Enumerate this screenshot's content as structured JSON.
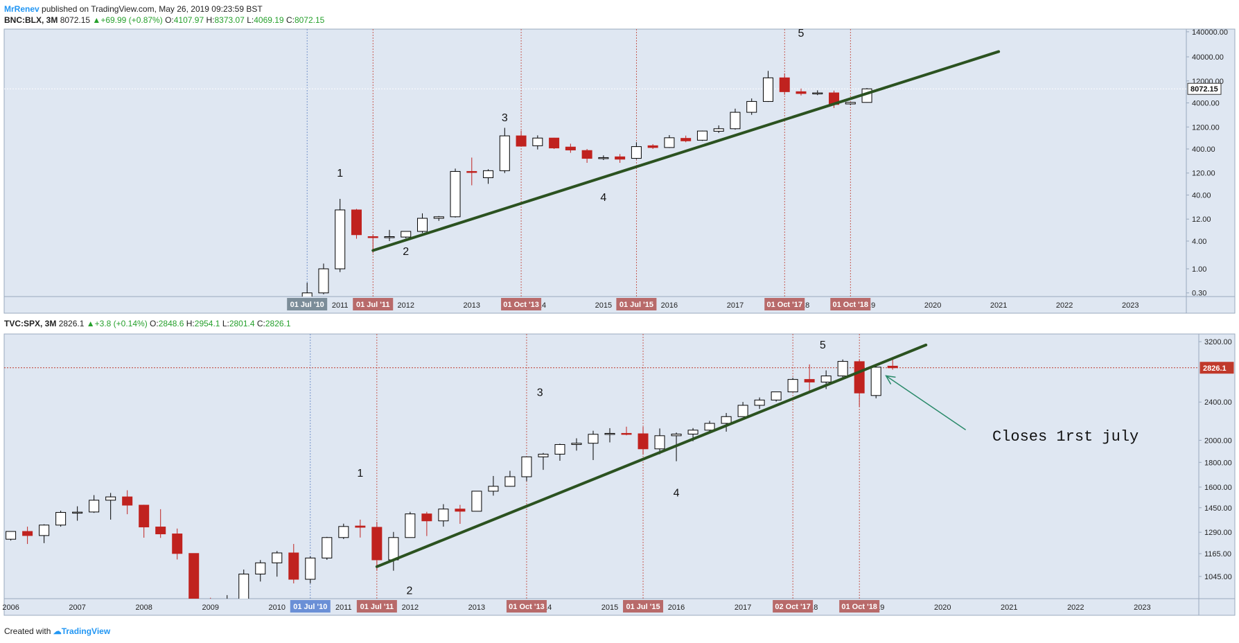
{
  "header": {
    "author": "MrRenev",
    "published": "published on TradingView.com, May 26, 2019 09:23:59 BST"
  },
  "footer": {
    "created_with": "Created with",
    "brand": "TradingView"
  },
  "colors": {
    "bg": "#dfe7f2",
    "up_fill": "#ffffff",
    "down_fill": "#c0221f",
    "trend": "#2b5220",
    "vline": "#c0392b",
    "vline_blue": "#5b7fbf",
    "arrow": "#2a8a6a"
  },
  "chart_data": [
    {
      "type": "candlestick",
      "symbol": "BNC:BLX, 3M",
      "legend": {
        "last": "8072.15",
        "change": "+69.99 (+0.87%)",
        "o_label": "O:",
        "o": "4107.97",
        "h_label": "H:",
        "h": "8373.07",
        "l_label": "L:",
        "l": "4069.19",
        "c_label": "C:",
        "c": "8072.15"
      },
      "yscale": "log",
      "ylim": [
        0.25,
        160000
      ],
      "xlim": [
        2005.9,
        2023.85
      ],
      "y_ticks": [
        "140000.00",
        "40000.00",
        "12000.00",
        "4000.00",
        "1200.00",
        "400.00",
        "120.00",
        "40.00",
        "12.00",
        "4.00",
        "1.00",
        "0.30"
      ],
      "y_tick_values": [
        140000,
        40000,
        12000,
        4000,
        1200,
        400,
        120,
        40,
        12,
        4,
        1,
        0.3
      ],
      "price_label": "8072.15",
      "price_value": 8072.15,
      "x_ticks": [
        "2011",
        "2012",
        "2013",
        "2014",
        "2015",
        "2016",
        "2017",
        "2018",
        "2019",
        "2020",
        "2021",
        "2022",
        "2023"
      ],
      "x_tick_values": [
        2011,
        2012,
        2013,
        2014,
        2015,
        2016,
        2017,
        2018,
        2019,
        2020,
        2021,
        2022,
        2023
      ],
      "date_markers": [
        {
          "text": "01 Jul '10",
          "t": 2010.5,
          "style": "gray"
        },
        {
          "text": "01 Jul '11",
          "t": 2011.5,
          "style": "red"
        },
        {
          "text": "01 Oct '13",
          "t": 2013.75,
          "style": "red"
        },
        {
          "text": "01 Jul '15",
          "t": 2015.5,
          "style": "red"
        },
        {
          "text": "01 Oct '17",
          "t": 2017.75,
          "style": "red"
        },
        {
          "text": "01 Oct '18",
          "t": 2018.75,
          "style": "red"
        }
      ],
      "wave_labels": [
        {
          "text": "1",
          "t": 2011.0,
          "y": 100
        },
        {
          "text": "2",
          "t": 2012.0,
          "y": 2
        },
        {
          "text": "3",
          "t": 2013.5,
          "y": 1600
        },
        {
          "text": "4",
          "t": 2015.0,
          "y": 30
        },
        {
          "text": "5",
          "t": 2018.0,
          "y": 110000
        }
      ],
      "trendline": [
        {
          "t": 2011.5,
          "y": 2.5
        },
        {
          "t": 2021.0,
          "y": 52000
        }
      ],
      "candles": [
        {
          "t": 2010.5,
          "o": 0.06,
          "h": 0.5,
          "l": 0.05,
          "c": 0.3
        },
        {
          "t": 2010.75,
          "o": 0.3,
          "h": 1.3,
          "l": 0.28,
          "c": 1.0
        },
        {
          "t": 2011.0,
          "o": 1.0,
          "h": 33,
          "l": 0.85,
          "c": 19
        },
        {
          "t": 2011.25,
          "o": 19,
          "h": 20,
          "l": 4.5,
          "c": 5.5
        },
        {
          "t": 2011.5,
          "o": 5.0,
          "h": 5.6,
          "l": 2.2,
          "c": 4.9
        },
        {
          "t": 2011.75,
          "o": 4.8,
          "h": 7.0,
          "l": 4.0,
          "c": 5.0
        },
        {
          "t": 2012.0,
          "o": 4.9,
          "h": 6.5,
          "l": 4.6,
          "c": 6.5
        },
        {
          "t": 2012.25,
          "o": 6.5,
          "h": 16,
          "l": 6.0,
          "c": 12.5
        },
        {
          "t": 2012.5,
          "o": 12.5,
          "h": 14,
          "l": 11,
          "c": 13.5
        },
        {
          "t": 2012.75,
          "o": 13.5,
          "h": 150,
          "l": 13,
          "c": 130
        },
        {
          "t": 2013.0,
          "o": 130,
          "h": 260,
          "l": 65,
          "c": 125
        },
        {
          "t": 2013.25,
          "o": 95,
          "h": 145,
          "l": 70,
          "c": 135
        },
        {
          "t": 2013.5,
          "o": 135,
          "h": 1150,
          "l": 120,
          "c": 770
        },
        {
          "t": 2013.75,
          "o": 770,
          "h": 1000,
          "l": 480,
          "c": 460
        },
        {
          "t": 2014.0,
          "o": 470,
          "h": 790,
          "l": 390,
          "c": 690
        },
        {
          "t": 2014.25,
          "o": 690,
          "h": 700,
          "l": 400,
          "c": 420
        },
        {
          "t": 2014.5,
          "o": 440,
          "h": 520,
          "l": 330,
          "c": 380
        },
        {
          "t": 2014.75,
          "o": 370,
          "h": 400,
          "l": 200,
          "c": 250
        },
        {
          "t": 2015.0,
          "o": 250,
          "h": 290,
          "l": 230,
          "c": 260
        },
        {
          "t": 2015.25,
          "o": 270,
          "h": 310,
          "l": 200,
          "c": 240
        },
        {
          "t": 2015.5,
          "o": 250,
          "h": 560,
          "l": 240,
          "c": 450
        },
        {
          "t": 2015.75,
          "o": 470,
          "h": 510,
          "l": 400,
          "c": 430
        },
        {
          "t": 2016.0,
          "o": 430,
          "h": 800,
          "l": 420,
          "c": 700
        },
        {
          "t": 2016.25,
          "o": 680,
          "h": 780,
          "l": 560,
          "c": 600
        },
        {
          "t": 2016.5,
          "o": 620,
          "h": 1000,
          "l": 600,
          "c": 980
        },
        {
          "t": 2016.75,
          "o": 970,
          "h": 1300,
          "l": 890,
          "c": 1100
        },
        {
          "t": 2017.0,
          "o": 1100,
          "h": 3000,
          "l": 1050,
          "c": 2500
        },
        {
          "t": 2017.25,
          "o": 2500,
          "h": 5000,
          "l": 2200,
          "c": 4300
        },
        {
          "t": 2017.5,
          "o": 4300,
          "h": 19800,
          "l": 4200,
          "c": 14000
        },
        {
          "t": 2017.75,
          "o": 14000,
          "h": 17500,
          "l": 6000,
          "c": 7000
        },
        {
          "t": 2018.0,
          "o": 7000,
          "h": 8200,
          "l": 5800,
          "c": 6400
        },
        {
          "t": 2018.25,
          "o": 6400,
          "h": 7500,
          "l": 5900,
          "c": 6600
        },
        {
          "t": 2018.5,
          "o": 6600,
          "h": 7400,
          "l": 3100,
          "c": 3700
        },
        {
          "t": 2018.75,
          "o": 3800,
          "h": 4200,
          "l": 3600,
          "c": 4100
        },
        {
          "t": 2019.0,
          "o": 4100,
          "h": 8400,
          "l": 4050,
          "c": 8072
        }
      ]
    },
    {
      "type": "candlestick",
      "symbol": "TVC:SPX, 3M",
      "legend": {
        "last": "2826.1",
        "change": "+3.8 (+0.14%)",
        "o_label": "O:",
        "o": "2848.6",
        "h_label": "H:",
        "h": "2954.1",
        "l_label": "L:",
        "l": "2801.4",
        "c_label": "C:",
        "c": "2826.1"
      },
      "yscale": "log",
      "ylim": [
        940,
        3320
      ],
      "xlim": [
        2005.9,
        2023.85
      ],
      "y_ticks": [
        "3200.00",
        "2400.00",
        "2000.00",
        "1800.00",
        "1600.00",
        "1450.00",
        "1290.00",
        "1165.00",
        "1045.00"
      ],
      "y_tick_values": [
        3200,
        2400,
        2000,
        1800,
        1600,
        1450,
        1290,
        1165,
        1045
      ],
      "price_label": "2826.1",
      "price_value": 2826.1,
      "x_ticks": [
        "2006",
        "2007",
        "2008",
        "2009",
        "2010",
        "2011",
        "2012",
        "2013",
        "2014",
        "2015",
        "2016",
        "2017",
        "2018",
        "2019",
        "2020",
        "2021",
        "2022",
        "2023"
      ],
      "x_tick_values": [
        2006,
        2007,
        2008,
        2009,
        2010,
        2011,
        2012,
        2013,
        2014,
        2015,
        2016,
        2017,
        2018,
        2019,
        2020,
        2021,
        2022,
        2023
      ],
      "date_markers": [
        {
          "text": "01 Jul '10",
          "t": 2010.5,
          "style": "blue"
        },
        {
          "text": "01 Jul '11",
          "t": 2011.5,
          "style": "red"
        },
        {
          "text": "01 Oct '13",
          "t": 2013.75,
          "style": "red"
        },
        {
          "text": "01 Jul '15",
          "t": 2015.5,
          "style": "red"
        },
        {
          "text": "02 Oct '17",
          "t": 2017.75,
          "style": "red"
        },
        {
          "text": "01 Oct '18",
          "t": 2018.75,
          "style": "red"
        }
      ],
      "wave_labels": [
        {
          "text": "1",
          "t": 2011.25,
          "y": 1680
        },
        {
          "text": "2",
          "t": 2011.99,
          "y": 960
        },
        {
          "text": "3",
          "t": 2013.95,
          "y": 2470
        },
        {
          "text": "4",
          "t": 2016.0,
          "y": 1530
        },
        {
          "text": "5",
          "t": 2018.2,
          "y": 3100
        }
      ],
      "trendline": [
        {
          "t": 2011.5,
          "y": 1095
        },
        {
          "t": 2019.75,
          "y": 3150
        }
      ],
      "annotation": {
        "text": "Closes 1rst july",
        "arrow_to_t": 2019.15,
        "arrow_to_y": 2720
      },
      "candles": [
        {
          "t": 2006.0,
          "o": 1248,
          "h": 1295,
          "l": 1240,
          "c": 1295
        },
        {
          "t": 2006.25,
          "o": 1295,
          "h": 1325,
          "l": 1220,
          "c": 1270
        },
        {
          "t": 2006.5,
          "o": 1270,
          "h": 1340,
          "l": 1225,
          "c": 1335
        },
        {
          "t": 2006.75,
          "o": 1335,
          "h": 1430,
          "l": 1325,
          "c": 1418
        },
        {
          "t": 2007.0,
          "o": 1418,
          "h": 1460,
          "l": 1363,
          "c": 1420
        },
        {
          "t": 2007.25,
          "o": 1421,
          "h": 1540,
          "l": 1415,
          "c": 1503
        },
        {
          "t": 2007.5,
          "o": 1503,
          "h": 1556,
          "l": 1370,
          "c": 1527
        },
        {
          "t": 2007.75,
          "o": 1527,
          "h": 1576,
          "l": 1406,
          "c": 1468
        },
        {
          "t": 2008.0,
          "o": 1468,
          "h": 1471,
          "l": 1257,
          "c": 1323
        },
        {
          "t": 2008.25,
          "o": 1323,
          "h": 1440,
          "l": 1256,
          "c": 1280
        },
        {
          "t": 2008.5,
          "o": 1280,
          "h": 1313,
          "l": 1133,
          "c": 1166
        },
        {
          "t": 2008.75,
          "o": 1166,
          "h": 1167,
          "l": 741,
          "c": 903
        },
        {
          "t": 2009.0,
          "o": 903,
          "h": 944,
          "l": 667,
          "c": 798
        },
        {
          "t": 2009.25,
          "o": 798,
          "h": 956,
          "l": 783,
          "c": 919
        },
        {
          "t": 2009.5,
          "o": 919,
          "h": 1080,
          "l": 869,
          "c": 1057
        },
        {
          "t": 2009.75,
          "o": 1057,
          "h": 1130,
          "l": 1020,
          "c": 1115
        },
        {
          "t": 2010.0,
          "o": 1115,
          "h": 1180,
          "l": 1044,
          "c": 1169
        },
        {
          "t": 2010.25,
          "o": 1169,
          "h": 1220,
          "l": 1011,
          "c": 1031
        },
        {
          "t": 2010.5,
          "o": 1031,
          "h": 1150,
          "l": 1011,
          "c": 1141
        },
        {
          "t": 2010.75,
          "o": 1141,
          "h": 1262,
          "l": 1131,
          "c": 1258
        },
        {
          "t": 2011.0,
          "o": 1258,
          "h": 1344,
          "l": 1249,
          "c": 1326
        },
        {
          "t": 2011.25,
          "o": 1329,
          "h": 1370,
          "l": 1258,
          "c": 1321
        },
        {
          "t": 2011.5,
          "o": 1321,
          "h": 1356,
          "l": 1075,
          "c": 1131
        },
        {
          "t": 2011.75,
          "o": 1131,
          "h": 1292,
          "l": 1074,
          "c": 1258
        },
        {
          "t": 2012.0,
          "o": 1258,
          "h": 1422,
          "l": 1258,
          "c": 1408
        },
        {
          "t": 2012.25,
          "o": 1408,
          "h": 1422,
          "l": 1267,
          "c": 1362
        },
        {
          "t": 2012.5,
          "o": 1362,
          "h": 1475,
          "l": 1325,
          "c": 1441
        },
        {
          "t": 2012.75,
          "o": 1441,
          "h": 1470,
          "l": 1343,
          "c": 1426
        },
        {
          "t": 2013.0,
          "o": 1426,
          "h": 1570,
          "l": 1426,
          "c": 1569
        },
        {
          "t": 2013.25,
          "o": 1569,
          "h": 1687,
          "l": 1536,
          "c": 1606
        },
        {
          "t": 2013.5,
          "o": 1606,
          "h": 1729,
          "l": 1604,
          "c": 1681
        },
        {
          "t": 2013.75,
          "o": 1681,
          "h": 1849,
          "l": 1646,
          "c": 1848
        },
        {
          "t": 2014.0,
          "o": 1848,
          "h": 1883,
          "l": 1737,
          "c": 1872
        },
        {
          "t": 2014.25,
          "o": 1872,
          "h": 1968,
          "l": 1814,
          "c": 1960
        },
        {
          "t": 2014.5,
          "o": 1960,
          "h": 2019,
          "l": 1904,
          "c": 1972
        },
        {
          "t": 2014.75,
          "o": 1972,
          "h": 2093,
          "l": 1820,
          "c": 2058
        },
        {
          "t": 2015.0,
          "o": 2058,
          "h": 2119,
          "l": 1980,
          "c": 2067
        },
        {
          "t": 2015.25,
          "o": 2067,
          "h": 2134,
          "l": 2048,
          "c": 2063
        },
        {
          "t": 2015.5,
          "o": 2063,
          "h": 2132,
          "l": 1867,
          "c": 1920
        },
        {
          "t": 2015.75,
          "o": 1920,
          "h": 2116,
          "l": 1871,
          "c": 2044
        },
        {
          "t": 2016.0,
          "o": 2044,
          "h": 2075,
          "l": 1810,
          "c": 2060
        },
        {
          "t": 2016.25,
          "o": 2060,
          "h": 2120,
          "l": 1991,
          "c": 2099
        },
        {
          "t": 2016.5,
          "o": 2099,
          "h": 2194,
          "l": 2074,
          "c": 2168
        },
        {
          "t": 2016.75,
          "o": 2168,
          "h": 2278,
          "l": 2084,
          "c": 2239
        },
        {
          "t": 2017.0,
          "o": 2239,
          "h": 2401,
          "l": 2245,
          "c": 2363
        },
        {
          "t": 2017.25,
          "o": 2363,
          "h": 2453,
          "l": 2322,
          "c": 2423
        },
        {
          "t": 2017.5,
          "o": 2423,
          "h": 2519,
          "l": 2405,
          "c": 2519
        },
        {
          "t": 2017.75,
          "o": 2519,
          "h": 2694,
          "l": 2520,
          "c": 2673
        },
        {
          "t": 2018.0,
          "o": 2673,
          "h": 2872,
          "l": 2532,
          "c": 2640
        },
        {
          "t": 2018.25,
          "o": 2640,
          "h": 2791,
          "l": 2553,
          "c": 2718
        },
        {
          "t": 2018.5,
          "o": 2718,
          "h": 2940,
          "l": 2691,
          "c": 2913
        },
        {
          "t": 2018.75,
          "o": 2910,
          "h": 2940,
          "l": 2346,
          "c": 2506
        },
        {
          "t": 2019.0,
          "o": 2476,
          "h": 2860,
          "l": 2443,
          "c": 2834
        },
        {
          "t": 2019.25,
          "o": 2848,
          "h": 2954,
          "l": 2801,
          "c": 2826
        }
      ]
    }
  ]
}
